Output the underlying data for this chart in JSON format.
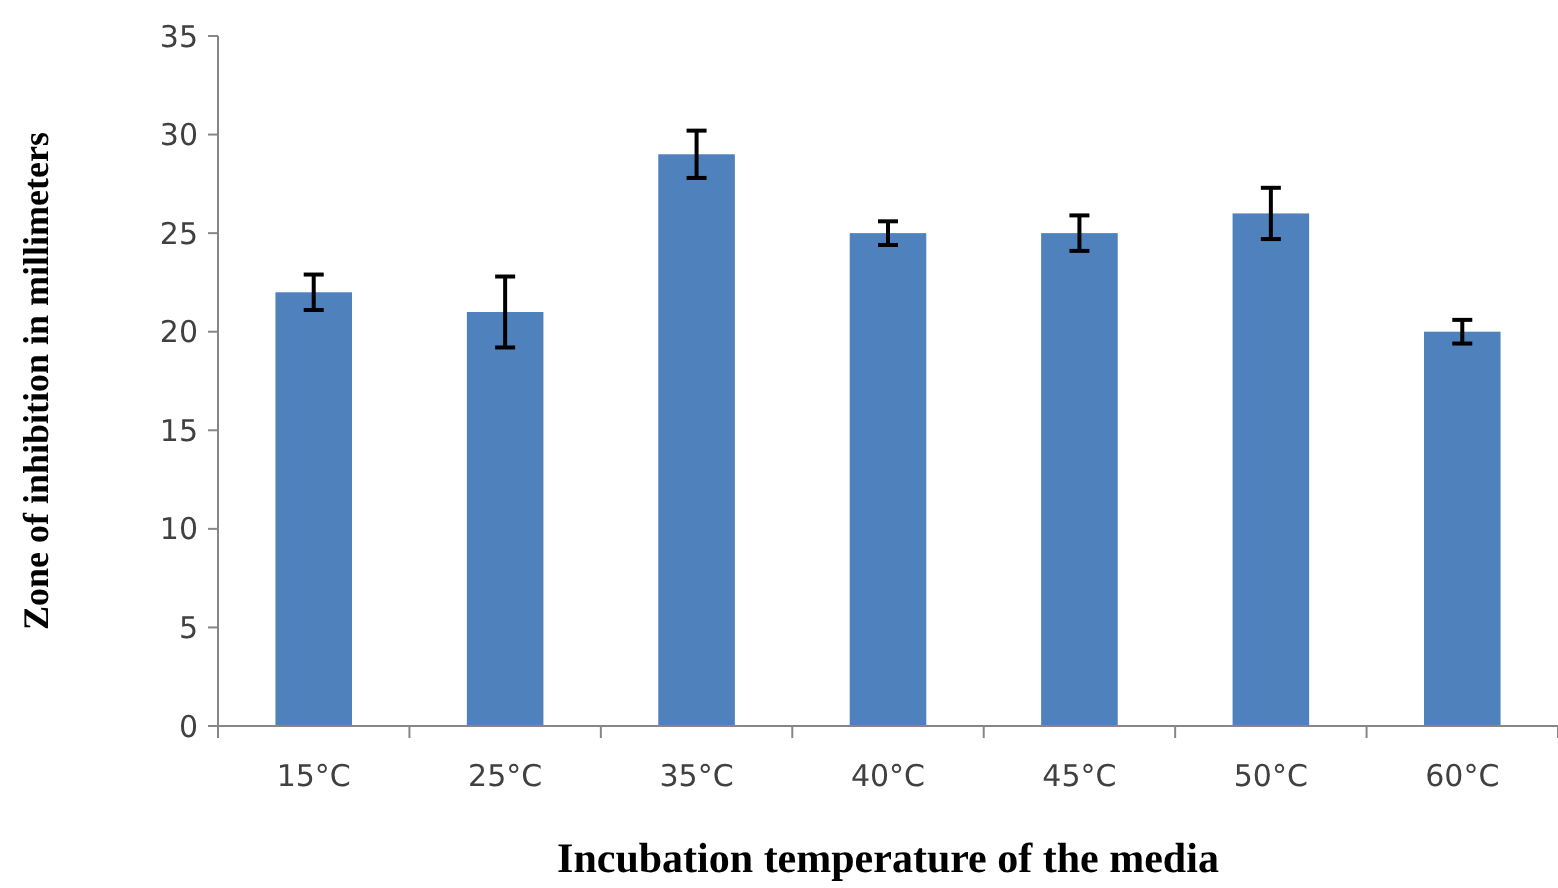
{
  "chart_data": {
    "type": "bar",
    "xlabel": "Incubation temperature of the media",
    "ylabel": "Zone of inhibition in millimeters",
    "categories": [
      "15°C",
      "25°C",
      "35°C",
      "40°C",
      "45°C",
      "50°C",
      "60°C"
    ],
    "values": [
      22,
      21,
      29,
      25,
      25,
      26,
      20
    ],
    "errors": [
      0.9,
      1.8,
      1.2,
      0.6,
      0.9,
      1.3,
      0.6
    ],
    "color": "#4f81bd",
    "ylim": [
      0,
      35
    ],
    "yticks": [
      0,
      5,
      10,
      15,
      20,
      25,
      30,
      35
    ],
    "grid": false
  }
}
